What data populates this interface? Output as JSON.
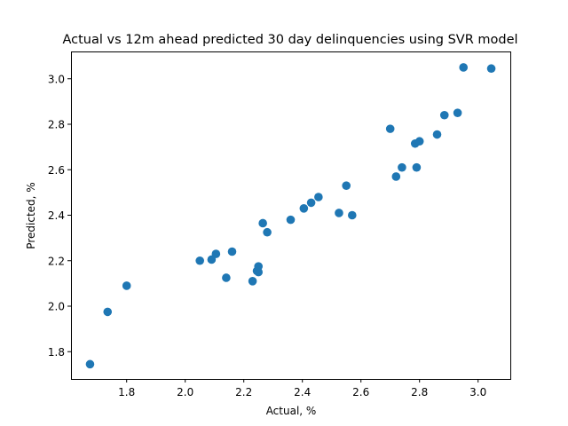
{
  "chart_data": {
    "type": "scatter",
    "title": "Actual vs 12m ahead predicted 30 day delinquencies using SVR model",
    "xlabel": "Actual, %",
    "ylabel": "Predicted, %",
    "xlim": [
      1.61,
      3.11
    ],
    "ylim": [
      1.68,
      3.12
    ],
    "xticks": [
      1.8,
      2.0,
      2.2,
      2.4,
      2.6,
      2.8,
      3.0
    ],
    "yticks": [
      1.8,
      2.0,
      2.2,
      2.4,
      2.6,
      2.8,
      3.0
    ],
    "xtick_labels": [
      "1.8",
      "2.0",
      "2.2",
      "2.4",
      "2.6",
      "2.8",
      "3.0"
    ],
    "ytick_labels": [
      "1.8",
      "2.0",
      "2.2",
      "2.4",
      "2.6",
      "2.8",
      "3.0"
    ],
    "grid": false,
    "color": "#1f77b4",
    "points": [
      [
        1.675,
        1.745
      ],
      [
        1.735,
        1.975
      ],
      [
        1.8,
        2.09
      ],
      [
        2.05,
        2.2
      ],
      [
        2.09,
        2.205
      ],
      [
        2.105,
        2.23
      ],
      [
        2.14,
        2.125
      ],
      [
        2.16,
        2.24
      ],
      [
        2.23,
        2.11
      ],
      [
        2.245,
        2.155
      ],
      [
        2.25,
        2.15
      ],
      [
        2.25,
        2.175
      ],
      [
        2.265,
        2.365
      ],
      [
        2.28,
        2.325
      ],
      [
        2.36,
        2.38
      ],
      [
        2.405,
        2.43
      ],
      [
        2.43,
        2.455
      ],
      [
        2.455,
        2.48
      ],
      [
        2.525,
        2.41
      ],
      [
        2.55,
        2.53
      ],
      [
        2.57,
        2.4
      ],
      [
        2.7,
        2.78
      ],
      [
        2.72,
        2.57
      ],
      [
        2.74,
        2.61
      ],
      [
        2.785,
        2.715
      ],
      [
        2.79,
        2.61
      ],
      [
        2.8,
        2.725
      ],
      [
        2.86,
        2.755
      ],
      [
        2.885,
        2.84
      ],
      [
        2.93,
        2.85
      ],
      [
        2.95,
        3.05
      ],
      [
        3.045,
        3.045
      ]
    ]
  }
}
